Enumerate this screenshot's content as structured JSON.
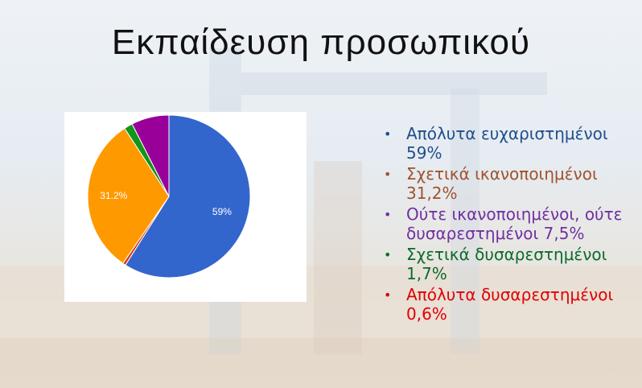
{
  "slide": {
    "title": "Εκπαίδευση προσωπικού"
  },
  "chart_data": {
    "type": "pie",
    "slices": [
      {
        "label": "Απόλυτα ευχαριστημένοι",
        "value": 59,
        "color": "#3366cc",
        "data_label": "59%"
      },
      {
        "label": "Απόλυτα δυσαρεστημένοι",
        "value": 0.6,
        "color": "#dc3912",
        "data_label": ""
      },
      {
        "label": "Σχετικά ικανοποιημένοι",
        "value": 31.2,
        "color": "#ff9900",
        "data_label": "31.2%"
      },
      {
        "label": "Σχετικά δυσαρεστημένοι",
        "value": 1.7,
        "color": "#109618",
        "data_label": ""
      },
      {
        "label": "Ούτε ικανοποιημένοι, ούτε δυσαρεστημένοι",
        "value": 7.5,
        "color": "#990099",
        "data_label": ""
      }
    ]
  },
  "legend": [
    {
      "text": "Απόλυτα ευχαριστημένοι 59%",
      "color": "#1f4e8c"
    },
    {
      "text": "Σχετικά ικανοποιημένοι 31,2%",
      "color": "#a0522d"
    },
    {
      "text": "Ούτε ικανοποιημένοι, ούτε δυσαρεστημένοι 7,5%",
      "color": "#7030a0"
    },
    {
      "text": "Σχετικά δυσαρεστημένοι 1,7%",
      "color": "#0b6b2c"
    },
    {
      "text": "Απόλυτα δυσαρεστημένοι 0,6%",
      "color": "#e00000"
    }
  ]
}
